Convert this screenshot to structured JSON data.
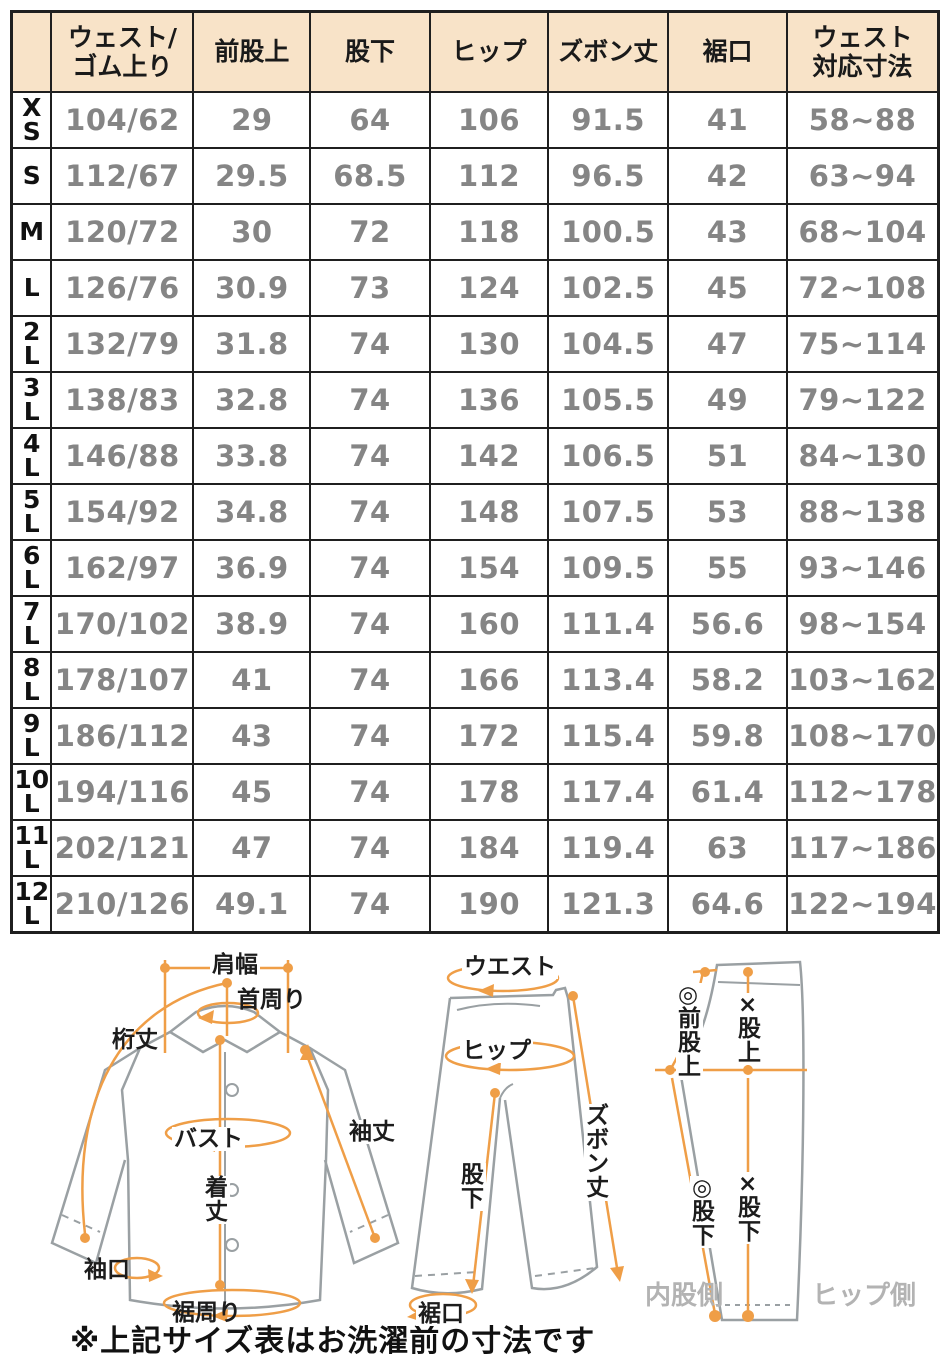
{
  "table": {
    "corner_header": "",
    "headers": [
      "ウェスト/\nゴム上り",
      "前股上",
      "股下",
      "ヒップ",
      "ズボン丈",
      "裾口",
      "ウェスト\n対応寸法"
    ],
    "rows": [
      {
        "size": "X\nS",
        "cells": [
          "104/62",
          "29",
          "64",
          "106",
          "91.5",
          "41",
          "58~88"
        ]
      },
      {
        "size": "S",
        "cells": [
          "112/67",
          "29.5",
          "68.5",
          "112",
          "96.5",
          "42",
          "63~94"
        ]
      },
      {
        "size": "M",
        "cells": [
          "120/72",
          "30",
          "72",
          "118",
          "100.5",
          "43",
          "68~104"
        ]
      },
      {
        "size": "L",
        "cells": [
          "126/76",
          "30.9",
          "73",
          "124",
          "102.5",
          "45",
          "72~108"
        ]
      },
      {
        "size": "2\nL",
        "cells": [
          "132/79",
          "31.8",
          "74",
          "130",
          "104.5",
          "47",
          "75~114"
        ]
      },
      {
        "size": "3\nL",
        "cells": [
          "138/83",
          "32.8",
          "74",
          "136",
          "105.5",
          "49",
          "79~122"
        ]
      },
      {
        "size": "4\nL",
        "cells": [
          "146/88",
          "33.8",
          "74",
          "142",
          "106.5",
          "51",
          "84~130"
        ]
      },
      {
        "size": "5\nL",
        "cells": [
          "154/92",
          "34.8",
          "74",
          "148",
          "107.5",
          "53",
          "88~138"
        ]
      },
      {
        "size": "6\nL",
        "cells": [
          "162/97",
          "36.9",
          "74",
          "154",
          "109.5",
          "55",
          "93~146"
        ]
      },
      {
        "size": "7\nL",
        "cells": [
          "170/102",
          "38.9",
          "74",
          "160",
          "111.4",
          "56.6",
          "98~154"
        ]
      },
      {
        "size": "8\nL",
        "cells": [
          "178/107",
          "41",
          "74",
          "166",
          "113.4",
          "58.2",
          "103~162"
        ]
      },
      {
        "size": "9\nL",
        "cells": [
          "186/112",
          "43",
          "74",
          "172",
          "115.4",
          "59.8",
          "108~170"
        ]
      },
      {
        "size": "10\nL",
        "cells": [
          "194/116",
          "45",
          "74",
          "178",
          "117.4",
          "61.4",
          "112~178"
        ]
      },
      {
        "size": "11\nL",
        "cells": [
          "202/121",
          "47",
          "74",
          "184",
          "119.4",
          "63",
          "117~186"
        ]
      },
      {
        "size": "12\nL",
        "cells": [
          "210/126",
          "49.1",
          "74",
          "190",
          "121.3",
          "64.6",
          "122~194"
        ]
      }
    ]
  },
  "diagrams": {
    "shirt": {
      "shoulder": "肩幅",
      "neck": "首周り",
      "yuki": "桁丈",
      "bust": "バスト",
      "sleeve": "袖丈",
      "length": "着\n丈",
      "cuff": "袖口",
      "hem": "裾周り"
    },
    "pants_front": {
      "waist": "ウエスト",
      "hip": "ヒップ",
      "length": "ズ\nボ\nン\n丈",
      "inseam": "股\n下",
      "hem": "裾口"
    },
    "pants_side": {
      "front_rise": "◎\n前\n股\n上",
      "rise": "×\n股\n上",
      "inseam_a": "◎\n股\n下",
      "inseam_b": "×\n股\n下",
      "inner_side": "内股側",
      "hip_side": "ヒップ側"
    }
  },
  "note": "※上記サイズ表はお洗濯前の寸法です",
  "colors": {
    "header_bg": "#f8e3c8",
    "border": "#1f1f1f",
    "value_text": "#858585",
    "accent_orange": "#ef9e47",
    "outline_gray": "#9aa0a3",
    "muted_label": "#b3b3b3"
  }
}
